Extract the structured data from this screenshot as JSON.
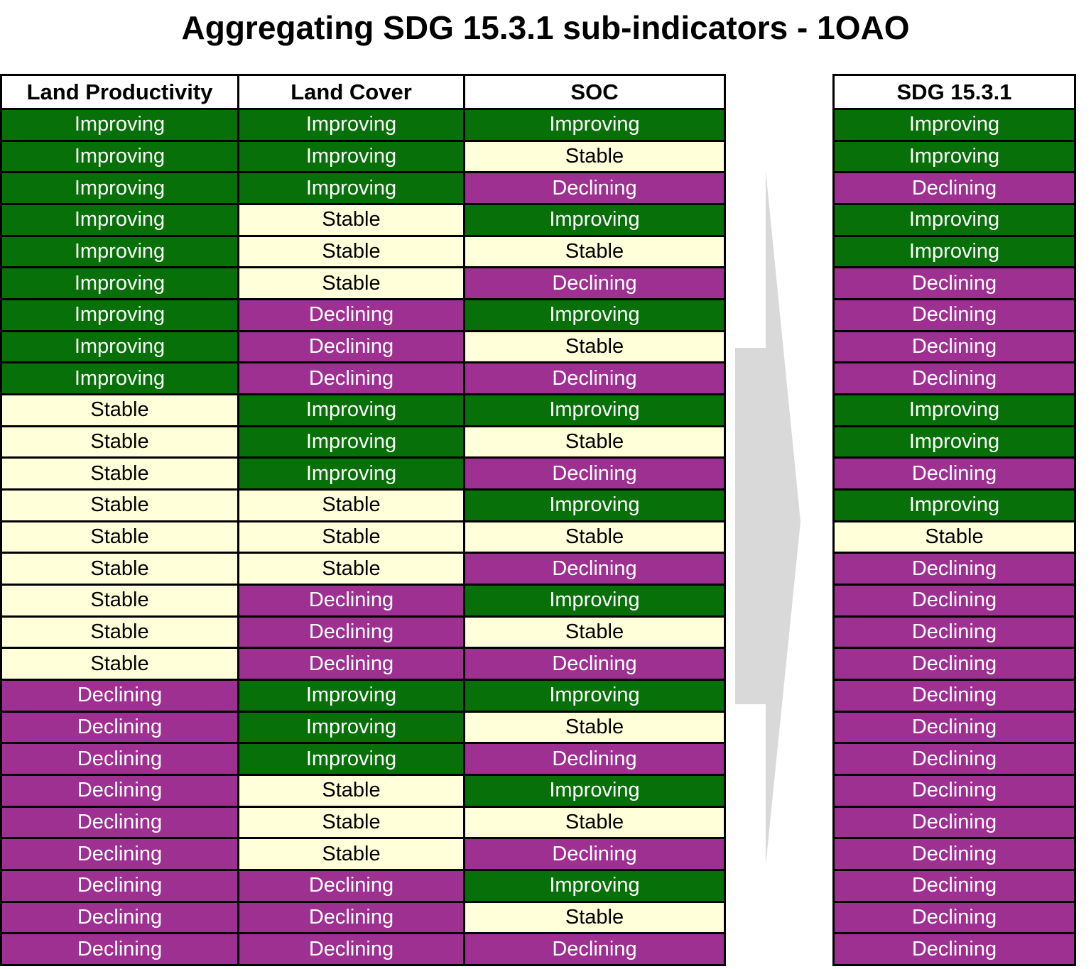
{
  "title": "Aggregating SDG 15.3.1 sub-indicators - 1OAO",
  "left_table": {
    "headers": [
      "Land Productivity",
      "Land Cover",
      "SOC"
    ]
  },
  "right_table": {
    "header": "SDG 15.3.1"
  },
  "colors": {
    "improving": "#087008",
    "stable": "#ffffd9",
    "declining": "#9e3092",
    "header_bg": "#ffffff",
    "border": "#000000",
    "arrow": "#d9d9d9",
    "text_on_color": "#ffffff",
    "text_on_light": "#000000"
  },
  "rows": [
    {
      "land_productivity": "Improving",
      "land_cover": "Improving",
      "soc": "Improving",
      "sdg_15_3_1": "Improving"
    },
    {
      "land_productivity": "Improving",
      "land_cover": "Improving",
      "soc": "Stable",
      "sdg_15_3_1": "Improving"
    },
    {
      "land_productivity": "Improving",
      "land_cover": "Improving",
      "soc": "Declining",
      "sdg_15_3_1": "Declining"
    },
    {
      "land_productivity": "Improving",
      "land_cover": "Stable",
      "soc": "Improving",
      "sdg_15_3_1": "Improving"
    },
    {
      "land_productivity": "Improving",
      "land_cover": "Stable",
      "soc": "Stable",
      "sdg_15_3_1": "Improving"
    },
    {
      "land_productivity": "Improving",
      "land_cover": "Stable",
      "soc": "Declining",
      "sdg_15_3_1": "Declining"
    },
    {
      "land_productivity": "Improving",
      "land_cover": "Declining",
      "soc": "Improving",
      "sdg_15_3_1": "Declining"
    },
    {
      "land_productivity": "Improving",
      "land_cover": "Declining",
      "soc": "Stable",
      "sdg_15_3_1": "Declining"
    },
    {
      "land_productivity": "Improving",
      "land_cover": "Declining",
      "soc": "Declining",
      "sdg_15_3_1": "Declining"
    },
    {
      "land_productivity": "Stable",
      "land_cover": "Improving",
      "soc": "Improving",
      "sdg_15_3_1": "Improving"
    },
    {
      "land_productivity": "Stable",
      "land_cover": "Improving",
      "soc": "Stable",
      "sdg_15_3_1": "Improving"
    },
    {
      "land_productivity": "Stable",
      "land_cover": "Improving",
      "soc": "Declining",
      "sdg_15_3_1": "Declining"
    },
    {
      "land_productivity": "Stable",
      "land_cover": "Stable",
      "soc": "Improving",
      "sdg_15_3_1": "Improving"
    },
    {
      "land_productivity": "Stable",
      "land_cover": "Stable",
      "soc": "Stable",
      "sdg_15_3_1": "Stable"
    },
    {
      "land_productivity": "Stable",
      "land_cover": "Stable",
      "soc": "Declining",
      "sdg_15_3_1": "Declining"
    },
    {
      "land_productivity": "Stable",
      "land_cover": "Declining",
      "soc": "Improving",
      "sdg_15_3_1": "Declining"
    },
    {
      "land_productivity": "Stable",
      "land_cover": "Declining",
      "soc": "Stable",
      "sdg_15_3_1": "Declining"
    },
    {
      "land_productivity": "Stable",
      "land_cover": "Declining",
      "soc": "Declining",
      "sdg_15_3_1": "Declining"
    },
    {
      "land_productivity": "Declining",
      "land_cover": "Improving",
      "soc": "Improving",
      "sdg_15_3_1": "Declining"
    },
    {
      "land_productivity": "Declining",
      "land_cover": "Improving",
      "soc": "Stable",
      "sdg_15_3_1": "Declining"
    },
    {
      "land_productivity": "Declining",
      "land_cover": "Improving",
      "soc": "Declining",
      "sdg_15_3_1": "Declining"
    },
    {
      "land_productivity": "Declining",
      "land_cover": "Stable",
      "soc": "Improving",
      "sdg_15_3_1": "Declining"
    },
    {
      "land_productivity": "Declining",
      "land_cover": "Stable",
      "soc": "Stable",
      "sdg_15_3_1": "Declining"
    },
    {
      "land_productivity": "Declining",
      "land_cover": "Stable",
      "soc": "Declining",
      "sdg_15_3_1": "Declining"
    },
    {
      "land_productivity": "Declining",
      "land_cover": "Declining",
      "soc": "Improving",
      "sdg_15_3_1": "Declining"
    },
    {
      "land_productivity": "Declining",
      "land_cover": "Declining",
      "soc": "Stable",
      "sdg_15_3_1": "Declining"
    },
    {
      "land_productivity": "Declining",
      "land_cover": "Declining",
      "soc": "Declining",
      "sdg_15_3_1": "Declining"
    }
  ]
}
